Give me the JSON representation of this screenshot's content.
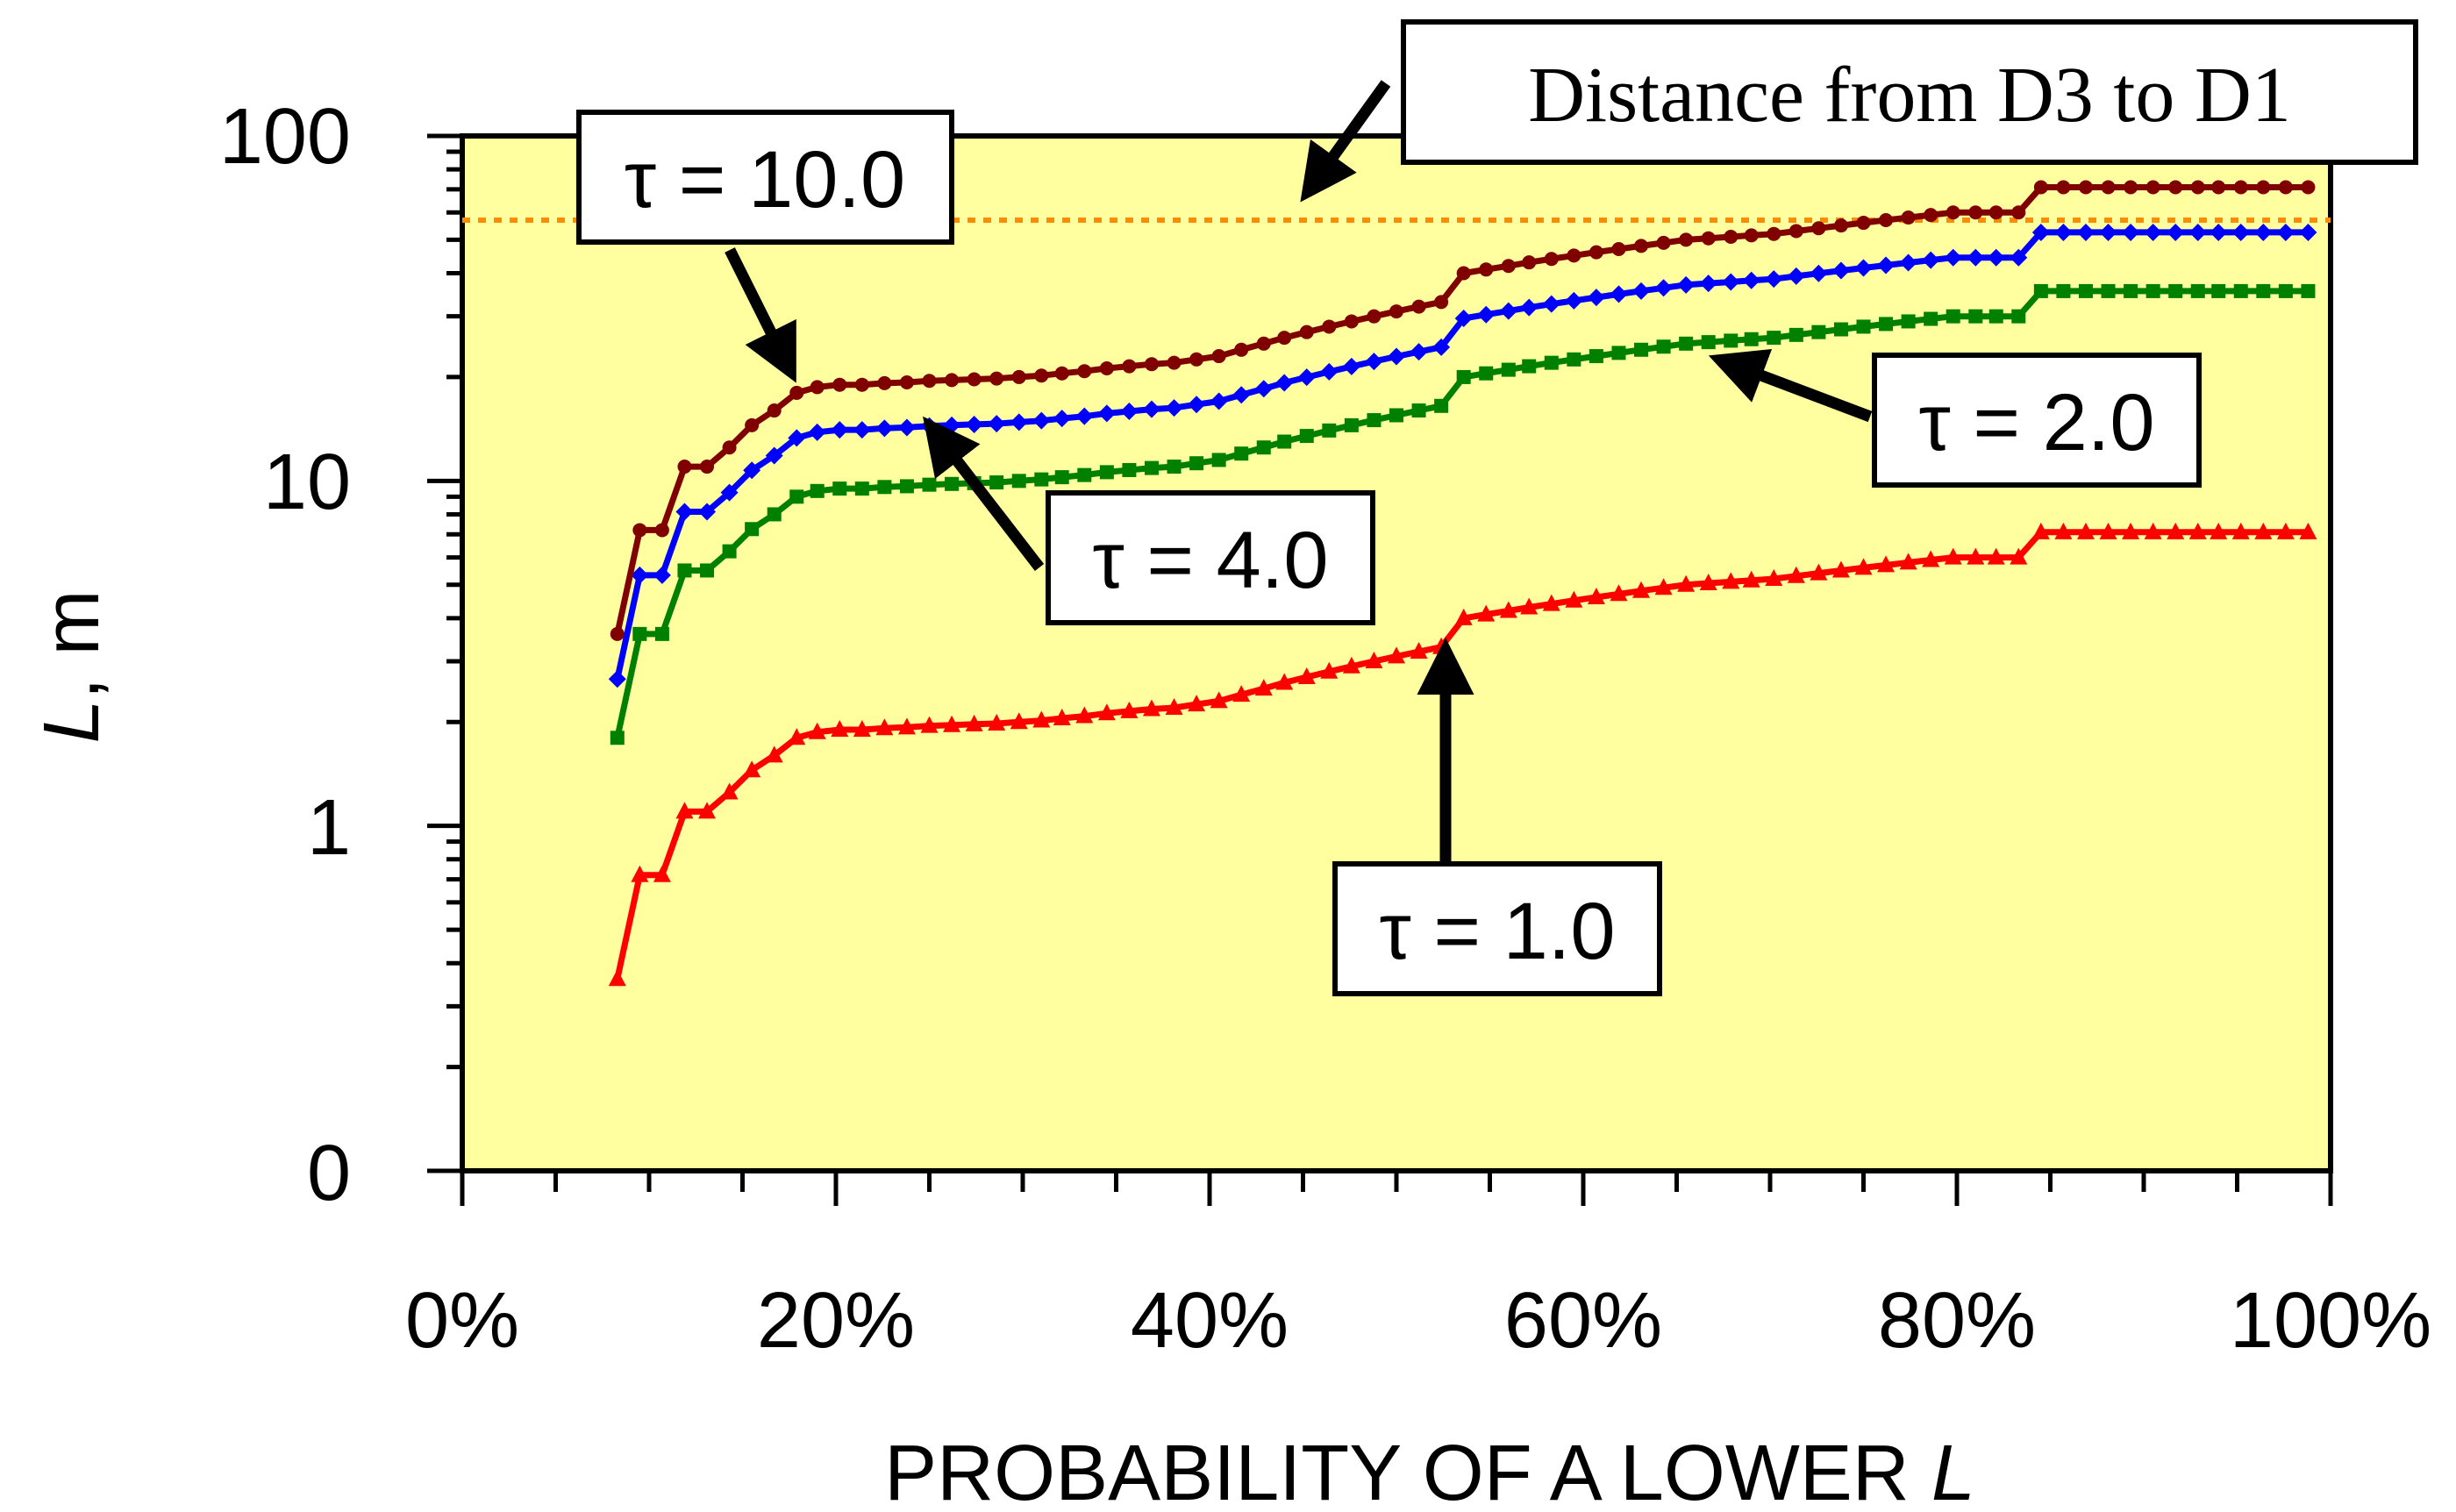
{
  "chart_data": {
    "type": "line",
    "title": "",
    "xlabel": "PROBABILITY OF A LOWER L",
    "xlabel_main": "PROBABILITY OF A LOWER ",
    "xlabel_var": "L",
    "ylabel_var": "L",
    "ylabel_unit": ", m",
    "yscale": "log",
    "xlim": [
      0,
      1
    ],
    "ylim_plot": [
      0.1,
      100
    ],
    "x_ticks": [
      "0%",
      "20%",
      "40%",
      "60%",
      "80%",
      "100%"
    ],
    "y_ticks": [
      "0",
      "1",
      "10",
      "100"
    ],
    "colors": {
      "background": "#ffffa0",
      "reference_line": "#ff8c00"
    },
    "reference_line": {
      "value": 57,
      "label": "Distance from D3 to D1"
    },
    "x": [
      0.083,
      0.095,
      0.107,
      0.119,
      0.131,
      0.143,
      0.155,
      0.167,
      0.179,
      0.19,
      0.202,
      0.214,
      0.226,
      0.238,
      0.25,
      0.262,
      0.274,
      0.286,
      0.298,
      0.31,
      0.321,
      0.333,
      0.345,
      0.357,
      0.369,
      0.381,
      0.393,
      0.405,
      0.417,
      0.429,
      0.44,
      0.452,
      0.464,
      0.476,
      0.488,
      0.5,
      0.512,
      0.524,
      0.536,
      0.548,
      0.56,
      0.571,
      0.583,
      0.595,
      0.607,
      0.619,
      0.631,
      0.643,
      0.655,
      0.667,
      0.679,
      0.69,
      0.702,
      0.714,
      0.726,
      0.738,
      0.75,
      0.762,
      0.774,
      0.786,
      0.798,
      0.81,
      0.821,
      0.833,
      0.845,
      0.857,
      0.869,
      0.881,
      0.893,
      0.905,
      0.917,
      0.929,
      0.94,
      0.952,
      0.964,
      0.976,
      0.988
    ],
    "series_norm": [
      0.36,
      0.72,
      0.72,
      1.1,
      1.1,
      1.25,
      1.45,
      1.6,
      1.8,
      1.87,
      1.9,
      1.9,
      1.92,
      1.93,
      1.95,
      1.96,
      1.97,
      1.98,
      2.0,
      2.02,
      2.05,
      2.08,
      2.12,
      2.15,
      2.18,
      2.2,
      2.25,
      2.3,
      2.4,
      2.5,
      2.6,
      2.7,
      2.8,
      2.9,
      3.0,
      3.1,
      3.2,
      3.3,
      4.0,
      4.1,
      4.2,
      4.3,
      4.4,
      4.5,
      4.6,
      4.7,
      4.8,
      4.9,
      5.0,
      5.05,
      5.1,
      5.15,
      5.2,
      5.3,
      5.4,
      5.5,
      5.6,
      5.7,
      5.8,
      5.9,
      6.0,
      6.0,
      6.0,
      6.0,
      7.1,
      7.1,
      7.1,
      7.1,
      7.1,
      7.1,
      7.1,
      7.1,
      7.1,
      7.1,
      7.1,
      7.1,
      7.1
    ],
    "series": [
      {
        "name": "τ = 1.0",
        "color": "#ff0000",
        "marker": "triangle",
        "factor": 1
      },
      {
        "name": "τ = 2.0",
        "color": "#008000",
        "marker": "square",
        "factor": 5
      },
      {
        "name": "τ = 4.0",
        "color": "#0000ff",
        "marker": "diamond",
        "factor": 7.4
      },
      {
        "name": "τ = 10.0",
        "color": "#800000",
        "marker": "circle",
        "factor": 10
      }
    ],
    "annotations": [
      {
        "text": "τ = 10.0",
        "target_x": 0.179,
        "target_series": 3
      },
      {
        "text": "τ = 4.0",
        "target_x": 0.238,
        "target_series": 2
      },
      {
        "text": "τ = 2.0",
        "target_x": 0.667,
        "target_series": 1
      },
      {
        "text": "τ = 1.0",
        "target_x": 0.524,
        "target_series": 0
      }
    ]
  }
}
